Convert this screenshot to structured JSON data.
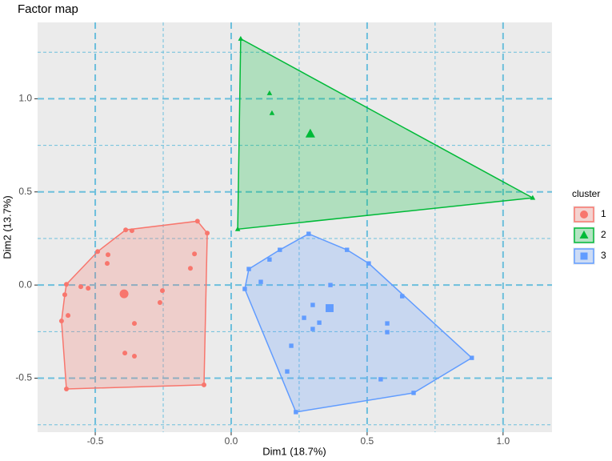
{
  "chart_data": {
    "type": "scatter",
    "title": "Factor map",
    "x_label": "Dim1 (18.7%)",
    "y_label": "Dim2 (13.7%)",
    "xlim": [
      -0.712,
      1.18
    ],
    "ylim": [
      -0.79,
      1.41
    ],
    "xticks": [
      -0.5,
      {
        "value": 0,
        "label": "0.0"
      },
      0.5,
      {
        "value": 1,
        "label": "1.0"
      }
    ],
    "yticks": [
      -0.5,
      {
        "value": 0,
        "label": "0.0"
      },
      0.5,
      {
        "value": 1,
        "label": "1.0"
      }
    ],
    "xminor": [
      -0.25,
      0.25,
      0.75
    ],
    "yminor": [
      -0.75,
      -0.25,
      0.25,
      0.75,
      1.25
    ],
    "grid": true,
    "grid_color": "#6cbfdc",
    "legend_title": "cluster",
    "legend_position": "right",
    "series": [
      {
        "name": "1",
        "color": "#F8766D",
        "marker": "circle",
        "x": [
          -0.606,
          -0.491,
          -0.388,
          -0.365,
          -0.124,
          -0.088,
          -0.135,
          -0.15,
          -0.1,
          -0.606,
          -0.624,
          -0.6,
          -0.612,
          -0.553,
          -0.526,
          -0.453,
          -0.456,
          -0.253,
          -0.262,
          -0.356,
          -0.391,
          -0.356
        ],
        "values": [
          0.004,
          0.18,
          0.296,
          0.292,
          0.343,
          0.279,
          0.167,
          0.09,
          -0.536,
          -0.558,
          -0.193,
          -0.163,
          -0.052,
          -0.009,
          -0.017,
          0.163,
          0.116,
          -0.03,
          -0.094,
          -0.206,
          -0.365,
          -0.382
        ],
        "centroid": [
          -0.394,
          -0.047
        ]
      },
      {
        "name": "2",
        "color": "#00BA38",
        "marker": "triangle",
        "x": [
          0.035,
          1.109,
          0.024,
          0.141,
          0.15
        ],
        "values": [
          1.322,
          0.468,
          0.3,
          1.03,
          0.923
        ],
        "centroid": [
          0.291,
          0.811
        ]
      },
      {
        "name": "3",
        "color": "#619CFF",
        "marker": "square",
        "x": [
          0.285,
          0.426,
          0.506,
          0.629,
          0.885,
          0.671,
          0.238,
          0.05,
          0.065,
          0.179,
          0.141,
          0.109,
          0.365,
          0.3,
          0.268,
          0.3,
          0.324,
          0.574,
          0.574,
          0.221,
          0.206,
          0.55
        ],
        "values": [
          0.275,
          0.189,
          0.116,
          -0.06,
          -0.391,
          -0.579,
          -0.682,
          -0.021,
          0.086,
          0.189,
          0.137,
          0.017,
          0,
          -0.107,
          -0.176,
          -0.236,
          -0.202,
          -0.206,
          -0.253,
          -0.326,
          -0.464,
          -0.506
        ],
        "centroid": [
          0.362,
          -0.124
        ]
      }
    ]
  }
}
